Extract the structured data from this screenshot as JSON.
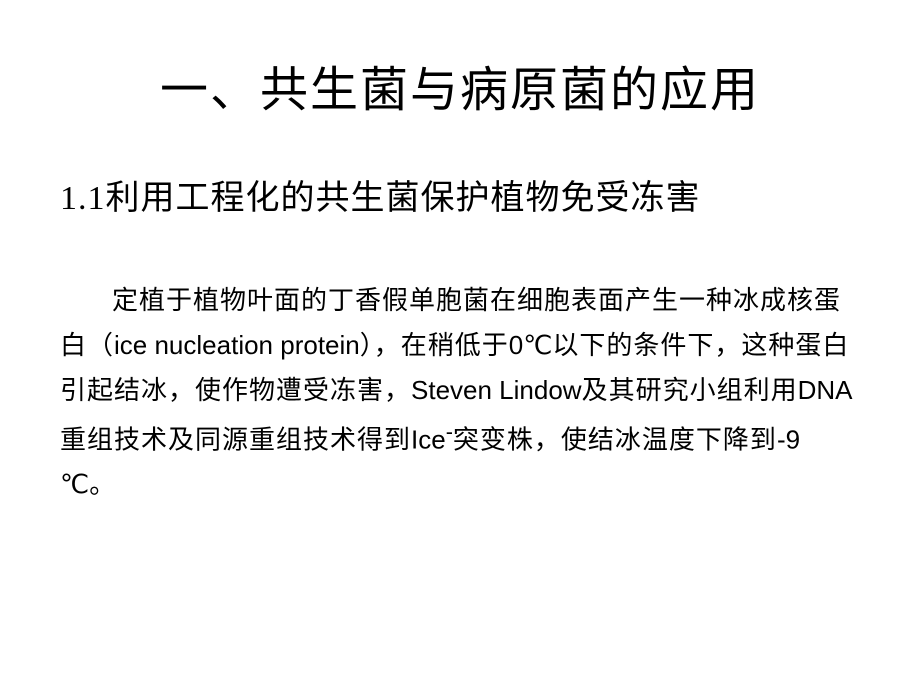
{
  "title": "一、共生菌与病原菌的应用",
  "subtitle": "1.1利用工程化的共生菌保护植物免受冻害",
  "body_parts": {
    "p1": "定植于植物叶面的丁香假单胞菌在细胞表面产生一种冰成核蛋白（",
    "p2": "ice nucleation protein",
    "p3": "），在稍低于",
    "p4": "0℃",
    "p5": "以下的条件下，这种蛋白引起结冰，使作物遭受冻害，",
    "p6": "Steven Lindow",
    "p7": "及其研究小组利用",
    "p8": "DNA",
    "p9": "重组技术及同源重组技术得到",
    "p10": "Ice",
    "p11": "-",
    "p12": "突变株，使结冰温度下降到",
    "p13": "-9 ℃",
    "p14": "。"
  },
  "colors": {
    "background": "#ffffff",
    "text": "#000000"
  },
  "fonts": {
    "chinese": "SimSun",
    "english": "Arial",
    "title_size": 48,
    "subtitle_size": 34,
    "body_size": 26
  }
}
